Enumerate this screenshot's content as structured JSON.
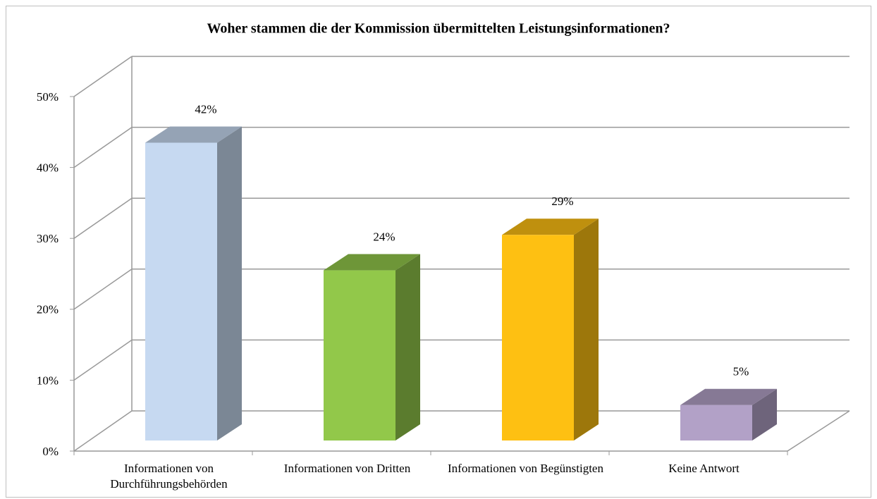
{
  "chart_data": {
    "type": "bar3d",
    "title": "Woher stammen die der Kommission übermittelten Leistungsinformationen?",
    "categories": [
      "Informationen von Durchführungsbehörden",
      "Informationen von Dritten",
      "Informationen von Begünstigten",
      "Keine Antwort"
    ],
    "values": [
      42,
      24,
      29,
      5
    ],
    "value_labels": [
      "42%",
      "24%",
      "29%",
      "5%"
    ],
    "colors": [
      "#c6d9f1",
      "#92c84a",
      "#fec012",
      "#b2a1c7"
    ],
    "ylim": [
      0,
      50
    ],
    "yticks": [
      {
        "value": 0,
        "label": "0%"
      },
      {
        "value": 10,
        "label": "10%"
      },
      {
        "value": 20,
        "label": "20%"
      },
      {
        "value": 30,
        "label": "30%"
      },
      {
        "value": 40,
        "label": "40%"
      },
      {
        "value": 50,
        "label": "50%"
      }
    ],
    "grid": true
  }
}
